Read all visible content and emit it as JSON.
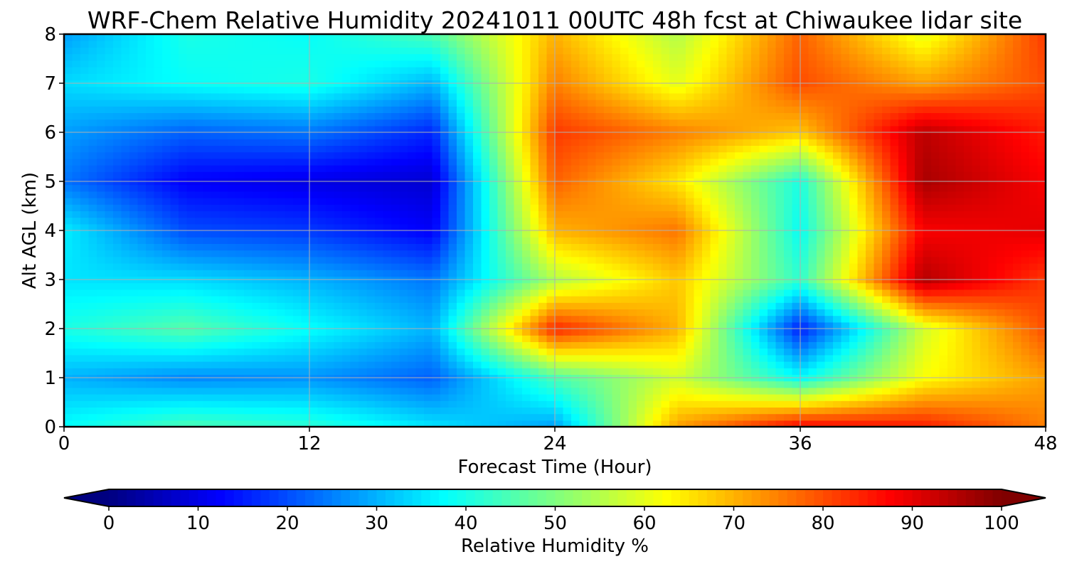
{
  "chart_data": {
    "type": "heatmap",
    "title": "WRF-Chem Relative Humidity 20241011 00UTC 48h fcst at Chiwaukee lidar site",
    "xlabel": "Forecast Time (Hour)",
    "ylabel": "Alt AGL (km)",
    "xlim": [
      0,
      48
    ],
    "ylim": [
      0,
      8
    ],
    "x_ticks": [
      0,
      12,
      24,
      36,
      48
    ],
    "y_ticks": [
      0,
      1,
      2,
      3,
      4,
      5,
      6,
      7,
      8
    ],
    "grid": true,
    "colormap": "jet",
    "colorbar": {
      "label": "Relative Humidity %",
      "orientation": "horizontal",
      "location": "bottom",
      "range": [
        0,
        100
      ],
      "ticks": [
        0,
        10,
        20,
        30,
        40,
        50,
        60,
        70,
        80,
        90,
        100
      ],
      "extend": "both"
    },
    "x": [
      0,
      6,
      12,
      18,
      24,
      30,
      36,
      42,
      48
    ],
    "y": [
      0,
      1,
      2,
      3,
      4,
      5,
      6,
      7,
      8
    ],
    "z": [
      [
        38,
        45,
        42,
        35,
        28,
        72,
        88,
        85,
        75
      ],
      [
        30,
        26,
        27,
        22,
        45,
        58,
        38,
        62,
        72
      ],
      [
        40,
        46,
        38,
        30,
        84,
        70,
        15,
        58,
        80
      ],
      [
        35,
        34,
        30,
        24,
        55,
        68,
        42,
        95,
        82
      ],
      [
        36,
        20,
        18,
        12,
        70,
        76,
        38,
        88,
        90
      ],
      [
        24,
        12,
        10,
        8,
        78,
        65,
        40,
        96,
        88
      ],
      [
        28,
        22,
        24,
        16,
        82,
        75,
        68,
        94,
        85
      ],
      [
        34,
        38,
        40,
        30,
        75,
        60,
        80,
        72,
        80
      ],
      [
        28,
        40,
        38,
        45,
        70,
        55,
        78,
        60,
        82
      ]
    ]
  }
}
